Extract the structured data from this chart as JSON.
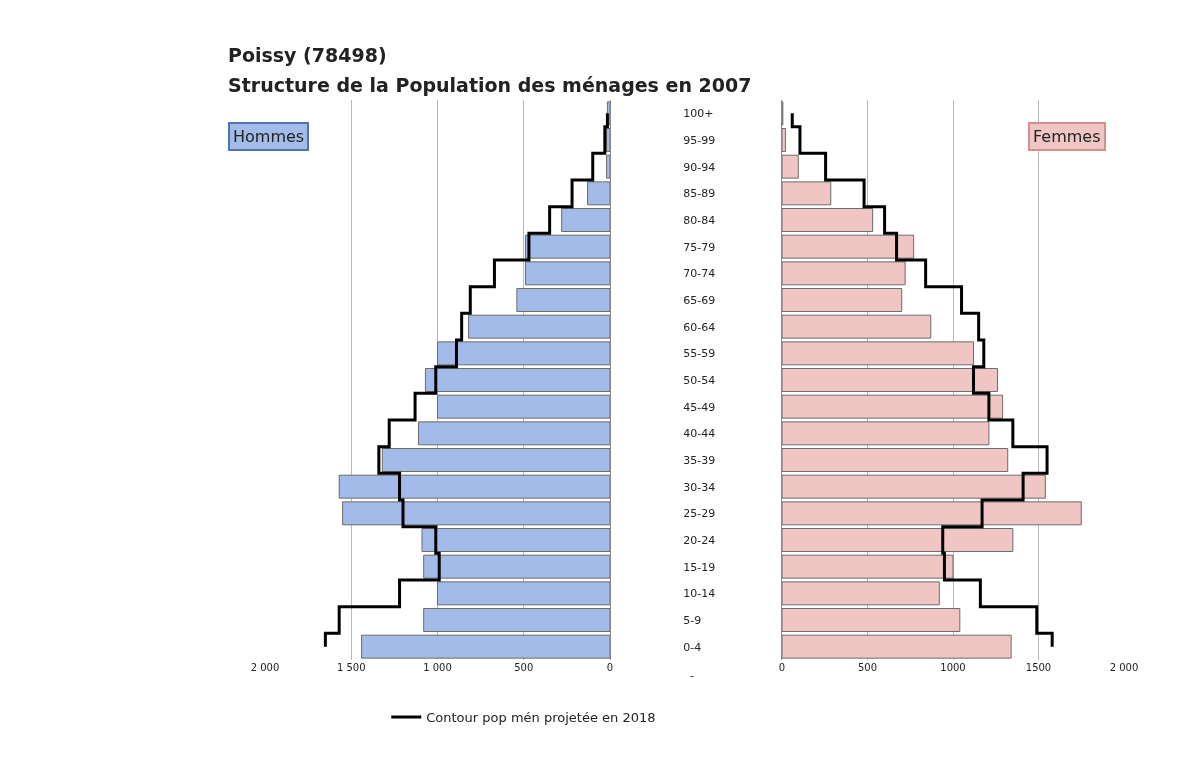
{
  "chart_data": [
    {
      "type": "bar",
      "orientation": "horizontal",
      "title": "Poissy (78498)",
      "subtitle": "Structure de la Population des ménages en 2007",
      "categories": [
        "100+",
        "95-99",
        "90-94",
        "85-89",
        "80-84",
        "75-79",
        "70-74",
        "65-69",
        "60-64",
        "55-59",
        "50-54",
        "45-49",
        "40-44",
        "35-39",
        "30-34",
        "25-29",
        "20-24",
        "15-19",
        "10-14",
        "5-9",
        "0-4"
      ],
      "series": [
        {
          "name": "Hommes",
          "color": "#a3bbe8",
          "values": [
            15,
            20,
            20,
            130,
            280,
            490,
            490,
            540,
            820,
            1000,
            1070,
            1000,
            1110,
            1320,
            1570,
            1550,
            1090,
            1080,
            1000,
            1080,
            1440
          ]
        },
        {
          "name": "Contour pop mén projetée en 2018",
          "type": "step",
          "color": "#000000",
          "values": [
            15,
            30,
            100,
            220,
            350,
            470,
            670,
            810,
            860,
            890,
            1010,
            1130,
            1280,
            1340,
            1220,
            1200,
            1010,
            990,
            1220,
            1570,
            1650
          ]
        }
      ],
      "xlim": [
        2000,
        0
      ],
      "xticks": [
        {
          "value": 2000,
          "label": "2 000"
        },
        {
          "value": 1500,
          "label": "1 500"
        },
        {
          "value": 1000,
          "label": "1 000"
        },
        500,
        0
      ],
      "grid": "x",
      "legend": "bottom",
      "annotations": [
        "-"
      ]
    },
    {
      "type": "bar",
      "orientation": "horizontal",
      "categories": [
        null,
        null,
        null,
        null,
        null,
        null,
        null,
        null,
        null,
        null,
        null,
        null,
        null,
        null,
        null,
        null,
        null,
        null,
        null,
        null,
        null
      ],
      "series": [
        {
          "name": "Femmes",
          "color": "#f0c6c5",
          "values": [
            5,
            20,
            95,
            285,
            530,
            770,
            720,
            700,
            870,
            1120,
            1260,
            1290,
            1210,
            1320,
            1540,
            1750,
            1350,
            1000,
            920,
            1040,
            1340
          ]
        },
        {
          "type": "step",
          "color": "#000000",
          "values": [
            60,
            105,
            255,
            480,
            600,
            670,
            840,
            1050,
            1150,
            1180,
            1120,
            1210,
            1350,
            1550,
            1410,
            1170,
            940,
            950,
            1160,
            1490,
            1580
          ]
        }
      ],
      "xlim": [
        0,
        2000
      ],
      "xticks": [
        0,
        500,
        1000,
        1500,
        {
          "value": 2000,
          "label": "2 000"
        }
      ],
      "grid": "x",
      "tick_labels": "x"
    }
  ]
}
